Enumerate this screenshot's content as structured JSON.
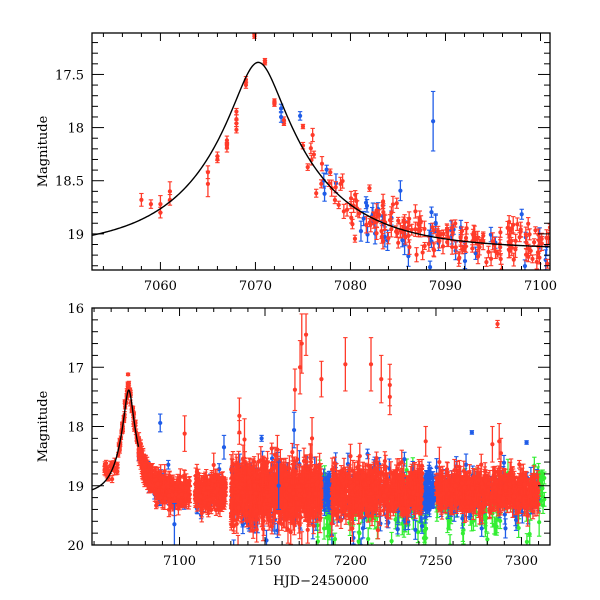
{
  "chart_data": [
    {
      "type": "scatter",
      "panel": "top",
      "title": "",
      "xlabel": "",
      "ylabel": "Magnitude",
      "xlim": [
        7052.8,
        7101.0
      ],
      "ylim": [
        19.34,
        17.11
      ],
      "y_inverted": true,
      "x_ticks": [
        7060,
        7070,
        7080,
        7090,
        7100
      ],
      "x_tick_labels": [
        "7060",
        "7070",
        "7080",
        "7090",
        "7100"
      ],
      "x_minor_step": 2,
      "y_ticks": [
        17.5,
        18,
        18.5,
        19
      ],
      "y_tick_labels": [
        "17.5",
        "18",
        "18.5",
        "19"
      ],
      "y_minor_step": 0.1,
      "grid": false,
      "legend": "none",
      "model_curve": {
        "name": "microlensing model",
        "t0": 7070.3,
        "u0": 0.2,
        "tE": 11.8,
        "baseline_mag": 19.15,
        "color": "#000000"
      },
      "series": [
        {
          "name": "red",
          "color": "#ff3b2a",
          "points": [
            [
              7058.0,
              18.68,
              0.06
            ],
            [
              7059.0,
              18.72,
              0.04
            ],
            [
              7060.0,
              18.72,
              0.08
            ],
            [
              7060.0,
              18.8,
              0.05
            ],
            [
              7061.0,
              18.6,
              0.09
            ],
            [
              7061.0,
              18.68,
              0.05
            ],
            [
              7065.0,
              18.42,
              0.06
            ],
            [
              7065.0,
              18.53,
              0.12
            ],
            [
              7066.0,
              18.27,
              0.04
            ],
            [
              7066.0,
              18.3,
              0.03
            ],
            [
              7067.0,
              18.12,
              0.04
            ],
            [
              7067.0,
              18.17,
              0.03
            ],
            [
              7067.0,
              18.19,
              0.04
            ],
            [
              7068.0,
              17.85,
              0.03
            ],
            [
              7068.0,
              17.92,
              0.04
            ],
            [
              7068.0,
              17.96,
              0.03
            ],
            [
              7068.0,
              18.02,
              0.03
            ],
            [
              7069.0,
              17.55,
              0.03
            ],
            [
              7069.0,
              17.6,
              0.03
            ],
            [
              7069.9,
              17.12,
              0.02
            ],
            [
              7069.9,
              17.14,
              0.02
            ],
            [
              7071.0,
              17.37,
              0.02
            ],
            [
              7071.0,
              17.39,
              0.02
            ],
            [
              7072.0,
              17.75,
              0.02
            ],
            [
              7072.0,
              17.78,
              0.02
            ],
            [
              7073.0,
              17.93,
              0.03
            ],
            [
              7073.0,
              17.96,
              0.02
            ],
            [
              7075.0,
              17.99,
              0.02
            ],
            [
              7075.0,
              18.17,
              0.03
            ],
            [
              7082.0,
              18.57,
              0.03
            ]
          ]
        },
        {
          "name": "blue",
          "color": "#1f5ce8",
          "points": [
            [
              7072.7,
              17.82,
              0.04
            ],
            [
              7072.7,
              17.9,
              0.05
            ],
            [
              7074.7,
              17.89,
              0.04
            ],
            [
              7088.7,
              17.94,
              0.28
            ]
          ]
        }
      ],
      "dense_segments": [
        {
          "band": "red",
          "start": 7075.5,
          "end": 7101,
          "per_day": 7,
          "follow_model": true,
          "scatter": 0.1,
          "err": [
            0.03,
            0.08
          ]
        },
        {
          "band": "blue",
          "start": 7077,
          "end": 7101,
          "per_day": 2,
          "follow_model": true,
          "scatter": 0.14,
          "err": [
            0.04,
            0.1
          ]
        }
      ]
    },
    {
      "type": "scatter",
      "panel": "bottom",
      "title": "",
      "xlabel": "HJD−2450000",
      "ylabel": "Magnitude",
      "xlim": [
        7048.8,
        7316.7
      ],
      "ylim": [
        20,
        16
      ],
      "y_inverted": true,
      "x_ticks": [
        7100,
        7150,
        7200,
        7250,
        7300
      ],
      "x_tick_labels": [
        "7100",
        "7150",
        "7200",
        "7250",
        "7300"
      ],
      "x_minor_step": 10,
      "y_ticks": [
        16,
        17,
        18,
        19,
        20
      ],
      "y_tick_labels": [
        "16",
        "17",
        "18",
        "19",
        "20"
      ],
      "y_minor_step": 0.2,
      "grid": false,
      "legend": "none",
      "model_curve": {
        "name": "microlensing model",
        "t0": 7070.3,
        "u0": 0.2,
        "tE": 11.8,
        "baseline_mag": 19.15,
        "color": "#000000",
        "t_end": 7076
      },
      "series": [
        {
          "name": "red",
          "color": "#ff3b2a",
          "points": [
            [
              7069.9,
              17.12,
              0.02
            ],
            [
              7071.0,
              17.37,
              0.02
            ],
            [
              7068.0,
              17.58,
              0.03
            ],
            [
              7103.0,
              18.12,
              0.3
            ],
            [
              7120.0,
              18.65,
              0.2
            ],
            [
              7135.0,
              17.82,
              0.3
            ],
            [
              7135.0,
              18.1,
              0.2
            ],
            [
              7138.0,
              18.22,
              0.35
            ],
            [
              7167.5,
              17.38,
              0.35
            ],
            [
              7170.5,
              17.0,
              0.45
            ],
            [
              7171.5,
              16.6,
              0.5
            ],
            [
              7174.0,
              16.45,
              0.35
            ],
            [
              7177.5,
              18.2,
              0.35
            ],
            [
              7183.0,
              17.2,
              0.3
            ],
            [
              7197.0,
              16.95,
              0.45
            ],
            [
              7212.0,
              16.95,
              0.45
            ],
            [
              7218.0,
              17.2,
              0.4
            ],
            [
              7223.0,
              17.3,
              0.35
            ],
            [
              7223.0,
              17.5,
              0.3
            ],
            [
              7283.0,
              18.3,
              0.3
            ],
            [
              7286.0,
              16.27,
              0.06
            ],
            [
              7287.0,
              18.25,
              0.3
            ],
            [
              7288.0,
              18.45,
              0.25
            ],
            [
              7252.0,
              18.6,
              0.25
            ],
            [
              7244.0,
              18.25,
              0.25
            ],
            [
              7200.0,
              18.5,
              0.2
            ],
            [
              7230.0,
              18.6,
              0.2
            ]
          ]
        },
        {
          "name": "blue",
          "color": "#1f5ce8",
          "points": [
            [
              7088.7,
              17.94,
              0.15
            ],
            [
              7126.0,
              18.35,
              0.2
            ],
            [
              7148.0,
              18.2,
              0.05
            ],
            [
              7167.0,
              18.06,
              0.3
            ],
            [
              7271.0,
              18.1,
              0.03
            ],
            [
              7303.0,
              18.27,
              0.03
            ],
            [
              7097.0,
              19.65,
              0.35
            ],
            [
              7158.0,
              19.0,
              0.4
            ]
          ]
        }
      ],
      "dense_segments": [
        {
          "band": "red",
          "start": 7056,
          "end": 7064,
          "per_day": 3,
          "mean": 18.72,
          "scatter": 0.06,
          "err": [
            0.04,
            0.08
          ]
        },
        {
          "band": "red",
          "start": 7064,
          "end": 7076,
          "per_day": 5,
          "follow_model": true,
          "scatter": 0.05,
          "err": [
            0.02,
            0.05
          ]
        },
        {
          "band": "red",
          "start": 7076,
          "end": 7106,
          "per_day": 14,
          "follow_model": true,
          "scatter": 0.1,
          "err": [
            0.05,
            0.14
          ]
        },
        {
          "band": "blue",
          "start": 7076,
          "end": 7106,
          "per_day": 1.2,
          "follow_model": true,
          "scatter": 0.15,
          "err": [
            0.05,
            0.12
          ]
        },
        {
          "band": "red",
          "start": 7109,
          "end": 7127,
          "per_day": 12,
          "mean": 19.12,
          "scatter": 0.14,
          "err": [
            0.06,
            0.15
          ]
        },
        {
          "band": "blue",
          "start": 7109,
          "end": 7127,
          "per_day": 1,
          "mean": 19.15,
          "scatter": 0.2,
          "err": [
            0.06,
            0.15
          ]
        },
        {
          "band": "red",
          "start": 7130,
          "end": 7183,
          "per_day": 16,
          "mean": 19.1,
          "scatter": 0.24,
          "err": [
            0.08,
            0.25
          ]
        },
        {
          "band": "blue",
          "start": 7130,
          "end": 7183,
          "per_day": 2.5,
          "mean": 19.2,
          "scatter": 0.3,
          "err": [
            0.08,
            0.25
          ]
        },
        {
          "band": "green",
          "start": 7180,
          "end": 7190,
          "per_day": 4,
          "mean": 19.3,
          "scatter": 0.3,
          "err": [
            0.1,
            0.2
          ]
        },
        {
          "band": "blue",
          "start": 7183,
          "end": 7189,
          "per_day": 10,
          "mean": 19.1,
          "scatter": 0.15,
          "err": [
            0.06,
            0.15
          ]
        },
        {
          "band": "red",
          "start": 7189,
          "end": 7218,
          "per_day": 12,
          "mean": 19.1,
          "scatter": 0.2,
          "err": [
            0.08,
            0.22
          ]
        },
        {
          "band": "blue",
          "start": 7189,
          "end": 7218,
          "per_day": 2,
          "mean": 19.15,
          "scatter": 0.3,
          "err": [
            0.08,
            0.2
          ]
        },
        {
          "band": "green",
          "start": 7189,
          "end": 7218,
          "per_day": 1.5,
          "mean": 19.35,
          "scatter": 0.35,
          "err": [
            0.1,
            0.2
          ]
        },
        {
          "band": "red",
          "start": 7219,
          "end": 7242,
          "per_day": 12,
          "mean": 19.1,
          "scatter": 0.18,
          "err": [
            0.08,
            0.2
          ]
        },
        {
          "band": "blue",
          "start": 7219,
          "end": 7242,
          "per_day": 1.5,
          "mean": 19.2,
          "scatter": 0.3,
          "err": [
            0.08,
            0.2
          ]
        },
        {
          "band": "green",
          "start": 7222,
          "end": 7245,
          "per_day": 1.5,
          "mean": 19.45,
          "scatter": 0.3,
          "err": [
            0.1,
            0.2
          ]
        },
        {
          "band": "blue",
          "start": 7242,
          "end": 7250,
          "per_day": 10,
          "mean": 19.1,
          "scatter": 0.15,
          "err": [
            0.06,
            0.15
          ]
        },
        {
          "band": "red",
          "start": 7250,
          "end": 7310,
          "per_day": 10,
          "mean": 19.1,
          "scatter": 0.15,
          "err": [
            0.06,
            0.2
          ]
        },
        {
          "band": "blue",
          "start": 7250,
          "end": 7310,
          "per_day": 1.5,
          "mean": 19.15,
          "scatter": 0.25,
          "err": [
            0.06,
            0.2
          ]
        },
        {
          "band": "green",
          "start": 7250,
          "end": 7312,
          "per_day": 1.3,
          "mean": 19.35,
          "scatter": 0.3,
          "err": [
            0.1,
            0.25
          ]
        },
        {
          "band": "green",
          "start": 7306,
          "end": 7314,
          "per_day": 3,
          "mean": 19.1,
          "scatter": 0.15,
          "err": [
            0.06,
            0.15
          ]
        }
      ]
    }
  ],
  "band_colors": {
    "red": "#ff3b2a",
    "blue": "#1f5ce8",
    "green": "#33ee33"
  }
}
